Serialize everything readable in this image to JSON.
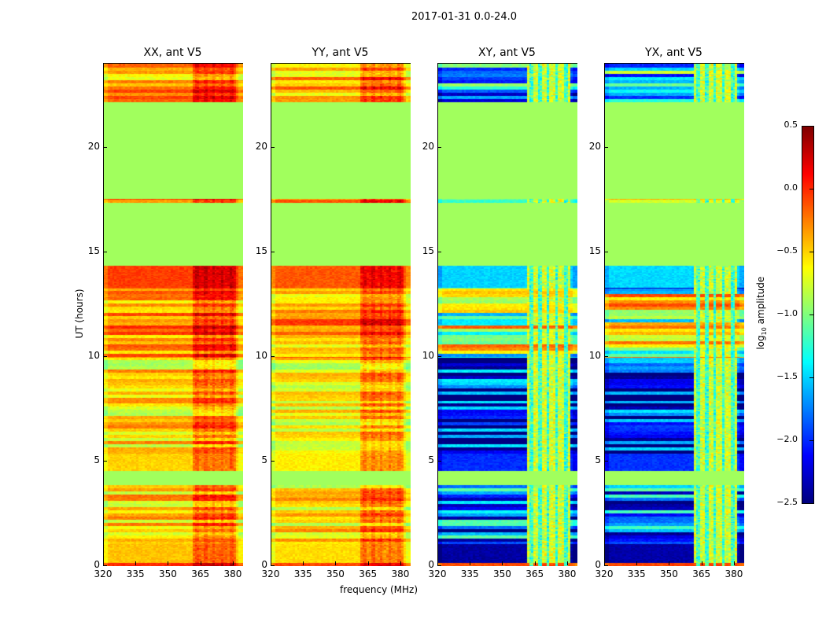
{
  "chart_data": {
    "type": "heatmap",
    "title": "2017-01-31 0.0-24.0",
    "xlabel": "frequency (MHz)",
    "ylabel": "UT (hours)",
    "xlim": [
      320,
      384.4
    ],
    "ylim": [
      0,
      24
    ],
    "xticks": [
      "320",
      "335",
      "350",
      "365",
      "380"
    ],
    "xtick_values": [
      320,
      335,
      350,
      365,
      380
    ],
    "yticks": [
      "0",
      "5",
      "10",
      "15",
      "20"
    ],
    "ytick_values": [
      0,
      5,
      10,
      15,
      20
    ],
    "panels": [
      {
        "title": "XX, ant V5",
        "kind": "parallel",
        "offset": 0.0
      },
      {
        "title": "YY, ant V5",
        "kind": "parallel",
        "offset": -0.08
      },
      {
        "title": "XY, ant V5",
        "kind": "cross",
        "offset": 0.0
      },
      {
        "title": "YX, ant V5",
        "kind": "cross",
        "offset": 0.02
      }
    ],
    "colorbar": {
      "label": "log10 amplitude",
      "label_main": "log",
      "label_sub": "10",
      "label_rest": " amplitude",
      "range": [
        -2.5,
        0.5
      ],
      "colormap": "jet",
      "ticks": [
        "0.5",
        "0.0",
        "−0.5",
        "−1.0",
        "−1.5",
        "−2.0",
        "−2.5"
      ],
      "tick_values": [
        0.5,
        0.0,
        -0.5,
        -1.0,
        -1.5,
        -2.0,
        -2.5
      ]
    },
    "flag_value": -0.9,
    "bright_channels_mhz": [
      [
        362,
        364
      ],
      [
        366,
        368
      ],
      [
        370,
        371
      ],
      [
        374,
        375
      ],
      [
        378,
        380
      ]
    ],
    "segments_hours": [
      {
        "t": [
          0.0,
          0.2
        ],
        "par": 0.0,
        "cross": -0.1,
        "stripe": false
      },
      {
        "t": [
          0.2,
          1.1
        ],
        "par": -0.45,
        "cross": -2.4,
        "stripe": false
      },
      {
        "t": [
          1.1,
          3.9
        ],
        "par": -0.5,
        "cross": -1.9,
        "stripe": true
      },
      {
        "t": [
          3.9,
          4.6
        ],
        "par": "flag",
        "cross": "flag",
        "stripe": false
      },
      {
        "t": [
          4.6,
          5.4
        ],
        "par": -0.5,
        "cross": -2.0,
        "stripe": false
      },
      {
        "t": [
          5.4,
          10.0
        ],
        "par": -0.55,
        "cross": -2.2,
        "stripe": true
      },
      {
        "t": [
          10.0,
          13.3
        ],
        "par": -0.3,
        "cross": -0.9,
        "stripe": true
      },
      {
        "t": [
          13.3,
          14.4
        ],
        "par": -0.05,
        "cross": -1.5,
        "stripe": false
      },
      {
        "t": [
          14.4,
          17.4
        ],
        "par": "flag",
        "cross": "flag",
        "stripe": false
      },
      {
        "t": [
          17.4,
          17.6
        ],
        "par": -0.3,
        "cross": -1.2,
        "stripe": true
      },
      {
        "t": [
          17.6,
          22.2
        ],
        "par": "flag",
        "cross": "flag",
        "stripe": false
      },
      {
        "t": [
          22.2,
          24.0
        ],
        "par": -0.35,
        "cross": -1.5,
        "stripe": true
      }
    ]
  }
}
